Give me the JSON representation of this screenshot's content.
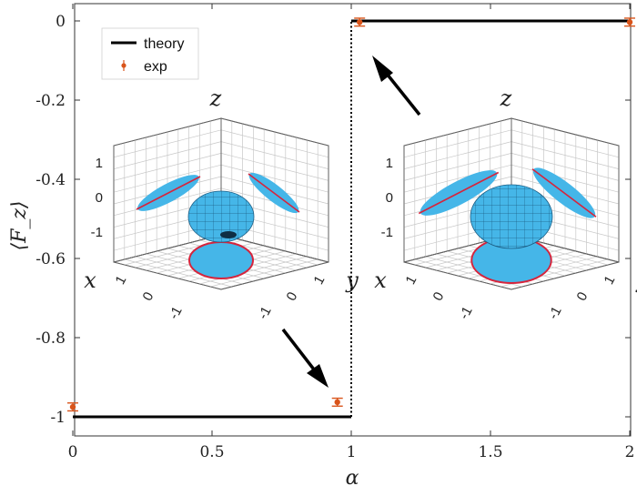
{
  "chart_data": {
    "type": "line",
    "xlabel": "α",
    "ylabel": "⟨F_z⟩",
    "xlim": [
      0,
      2
    ],
    "ylim": [
      -1.05,
      0.03
    ],
    "x_ticks": [
      0,
      0.5,
      1,
      1.5,
      2
    ],
    "x_tick_labels": [
      "0",
      "0.5",
      "1",
      "1.5",
      "2"
    ],
    "y_ticks": [
      0,
      -0.2,
      -0.4,
      -0.6,
      -0.8,
      -1
    ],
    "y_tick_labels": [
      "0",
      "-0.2",
      "-0.4",
      "-0.6",
      "-0.8",
      "-1"
    ],
    "grid": false,
    "legend_position": "top-left",
    "series": [
      {
        "name": "theory",
        "kind": "line",
        "color": "#000000",
        "segments": [
          {
            "x": [
              0,
              1
            ],
            "y": [
              -1,
              -1
            ],
            "style": "solid"
          },
          {
            "x": [
              1,
              1
            ],
            "y": [
              -1,
              0
            ],
            "style": "dotted"
          },
          {
            "x": [
              1,
              2
            ],
            "y": [
              0,
              0
            ],
            "style": "solid"
          }
        ]
      },
      {
        "name": "exp",
        "kind": "errorbar",
        "color": "#d9541a",
        "points": [
          {
            "x": 0.0,
            "y": -0.975,
            "err": 0.01
          },
          {
            "x": 0.95,
            "y": -0.963,
            "err": 0.01
          },
          {
            "x": 1.03,
            "y": -0.003,
            "err": 0.01
          },
          {
            "x": 2.0,
            "y": -0.003,
            "err": 0.01
          }
        ]
      }
    ],
    "insets": [
      {
        "position": "left",
        "axis_labels": [
          "x",
          "y",
          "z"
        ],
        "z_ticks": [
          "1",
          "0",
          "-1"
        ],
        "x_ticks": [
          "1",
          "0",
          "-1"
        ],
        "y_ticks": [
          "1",
          "0",
          "-1"
        ]
      },
      {
        "position": "right",
        "axis_labels": [
          "x",
          "y",
          "z"
        ],
        "z_ticks": [
          "1",
          "0",
          "-1"
        ],
        "x_ticks": [
          "1",
          "0",
          "-1"
        ],
        "y_ticks": [
          "1",
          "0",
          "-1"
        ]
      }
    ]
  },
  "colors": {
    "ellipsoid": "#45b6e8",
    "projection_line": "#d6243c",
    "theory": "#000000",
    "exp": "#d9541a"
  }
}
